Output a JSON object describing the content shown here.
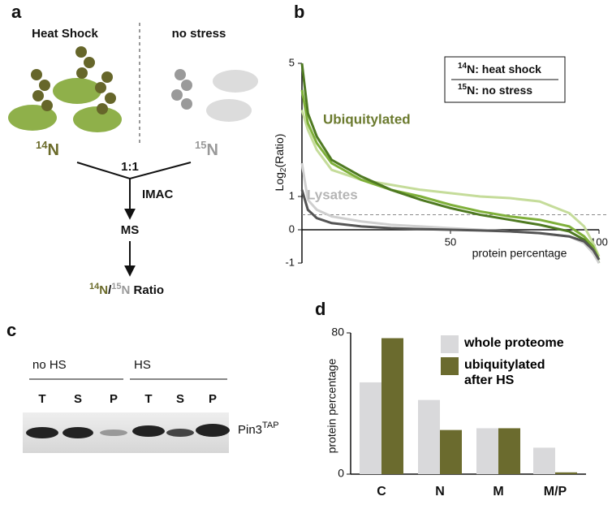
{
  "panels": {
    "a": "a",
    "b": "b",
    "c": "c",
    "d": "d"
  },
  "diagram": {
    "left_title": "Heat Shock",
    "right_title": "no stress",
    "left_isotope": {
      "mass": "14",
      "element": "N"
    },
    "right_isotope": {
      "mass": "15",
      "element": "N"
    },
    "mix": "1:1",
    "step1": "IMAC",
    "step2": "MS",
    "result": {
      "mass1": "14",
      "element1": "N",
      "slash": "/",
      "mass2": "15",
      "element2": "N",
      "rest": " Ratio"
    }
  },
  "blot": {
    "groups": [
      "no HS",
      "HS"
    ],
    "lanes": [
      "T",
      "S",
      "P",
      "T",
      "S",
      "P"
    ],
    "label": {
      "text": "Pin3",
      "sup": "TAP"
    }
  },
  "chart_data": [
    {
      "type": "line",
      "ylabel": {
        "text": "Log",
        "sub": "2",
        "after": "(Ratio)"
      },
      "xlabel": "protein percentage",
      "legend_box": {
        "top": {
          "mass": "14",
          "rest": "N: heat shock"
        },
        "bottom": {
          "mass": "15",
          "rest": "N: no stress"
        }
      },
      "annotations": [
        {
          "text": "Ubiquitylated",
          "color": "#6b7a2e"
        },
        {
          "text": "Lysates",
          "color": "#b5b5b5"
        }
      ],
      "reference_line": 0.45,
      "xlim": [
        0,
        100
      ],
      "xticks": [
        50,
        100
      ],
      "ylim": [
        -1,
        5
      ],
      "yticks": [
        -1,
        0,
        1,
        5
      ],
      "x": [
        0,
        2,
        5,
        10,
        20,
        30,
        40,
        50,
        60,
        70,
        80,
        90,
        95,
        98,
        100
      ],
      "series": [
        {
          "color": "#c5dc9a",
          "values": [
            3.6,
            3.0,
            2.4,
            1.8,
            1.5,
            1.35,
            1.2,
            1.1,
            1.0,
            0.95,
            0.85,
            0.5,
            0.1,
            -0.4,
            -0.8
          ]
        },
        {
          "color": "#7fb03a",
          "values": [
            4.2,
            3.2,
            2.6,
            2.0,
            1.5,
            1.2,
            1.0,
            0.75,
            0.55,
            0.4,
            0.3,
            0.1,
            -0.2,
            -0.5,
            -0.9
          ]
        },
        {
          "color": "#4f7a22",
          "values": [
            5,
            3.5,
            2.8,
            2.1,
            1.6,
            1.2,
            0.9,
            0.65,
            0.45,
            0.3,
            0.15,
            -0.05,
            -0.3,
            -0.6,
            -1
          ]
        },
        {
          "color": "#cfcfcf",
          "values": [
            2.0,
            0.9,
            0.6,
            0.4,
            0.25,
            0.15,
            0.1,
            0.05,
            0,
            -0.05,
            -0.1,
            -0.2,
            -0.4,
            -0.7,
            -1
          ]
        },
        {
          "color": "#555555",
          "values": [
            1.2,
            0.6,
            0.35,
            0.2,
            0.1,
            0.05,
            0.02,
            0,
            -0.02,
            -0.05,
            -0.1,
            -0.2,
            -0.35,
            -0.6,
            -0.9
          ]
        }
      ]
    },
    {
      "type": "bar",
      "ylabel": "protein percentage",
      "categories": [
        "C",
        "N",
        "M",
        "M/P"
      ],
      "ylim": [
        0,
        80
      ],
      "yticks": [
        0,
        80
      ],
      "series": [
        {
          "name": "whole proteome",
          "color": "#d9d9db",
          "values": [
            52,
            42,
            26,
            15
          ]
        },
        {
          "name": "ubiquitylated after HS",
          "color": "#6b6b2e",
          "values": [
            77,
            25,
            26,
            1
          ]
        }
      ]
    }
  ]
}
